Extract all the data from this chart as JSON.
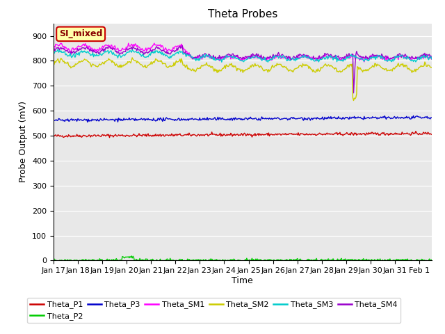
{
  "title": "Theta Probes",
  "ylabel": "Probe Output (mV)",
  "xlabel": "Time",
  "ylim": [
    0,
    950
  ],
  "xlim": [
    0,
    15.5
  ],
  "bg_color": "#e8e8e8",
  "fig_color": "#ffffff",
  "series": {
    "Theta_P1": {
      "color": "#cc0000"
    },
    "Theta_P2": {
      "color": "#00cc00"
    },
    "Theta_P3": {
      "color": "#0000cc"
    },
    "Theta_SM1": {
      "color": "#ff00ff"
    },
    "Theta_SM2": {
      "color": "#cccc00"
    },
    "Theta_SM3": {
      "color": "#00cccc"
    },
    "Theta_SM4": {
      "color": "#9900cc"
    }
  },
  "xtick_labels": [
    "Jan 17",
    "Jan 18",
    "Jan 19",
    "Jan 20",
    "Jan 21",
    "Jan 22",
    "Jan 23",
    "Jan 24",
    "Jan 25",
    "Jan 26",
    "Jan 27",
    "Jan 28",
    "Jan 29",
    "Jan 30",
    "Jan 31",
    "Feb 1"
  ],
  "annotation_label": "SI_mixed",
  "annotation_color_bg": "#ffffaa",
  "annotation_color_border": "#cc0000",
  "annotation_color_text": "#880000"
}
